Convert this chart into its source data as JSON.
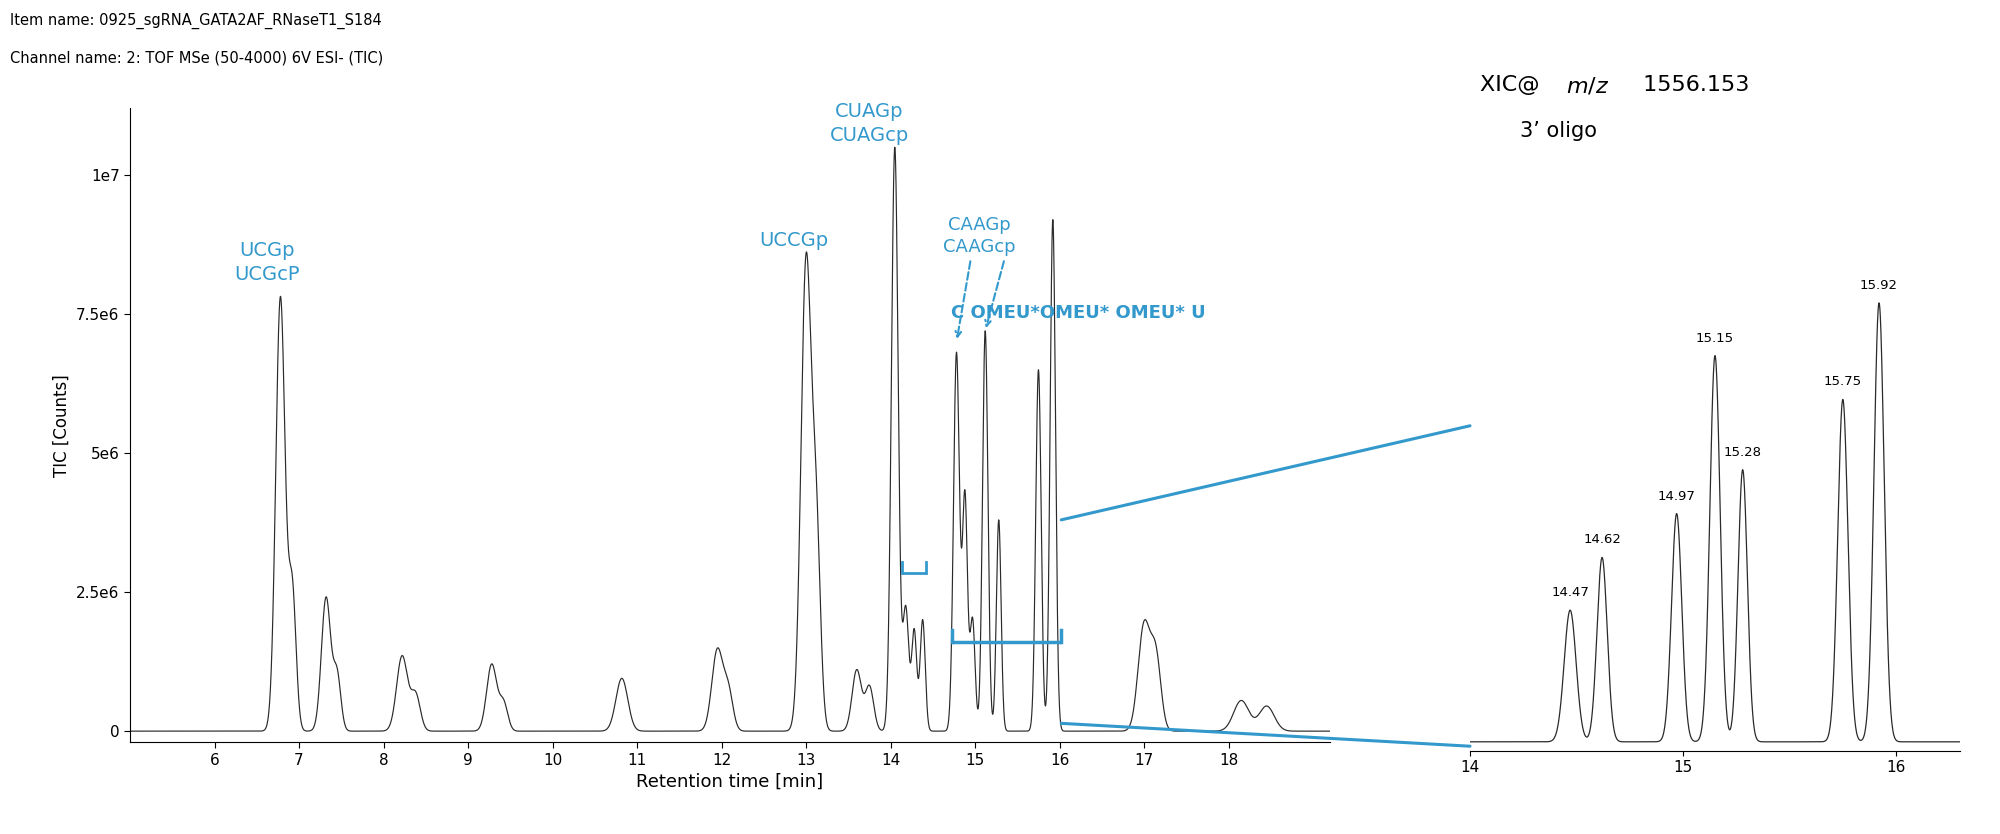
{
  "title_line1": "Item name: 0925_sgRNA_GATA2AF_RNaseT1_S184",
  "title_line2": "Channel name: 2: TOF MSe (50-4000) 6V ESI- (TIC)",
  "xlabel": "Retention time [min]",
  "ylabel": "TIC [Counts]",
  "xlim": [
    5.0,
    19.2
  ],
  "ylim": [
    -200000.0,
    11200000.0
  ],
  "yticks": [
    0,
    2500000.0,
    5000000.0,
    7500000.0,
    10000000.0
  ],
  "ytick_labels": [
    "0",
    "2.5e6",
    "5e6",
    "7.5e6",
    "1e7"
  ],
  "xticks": [
    6,
    7,
    8,
    9,
    10,
    11,
    12,
    13,
    14,
    15,
    16,
    17,
    18
  ],
  "blue_color": "#3399CC",
  "line_color": "#2a2a2a",
  "background_color": "#ffffff"
}
